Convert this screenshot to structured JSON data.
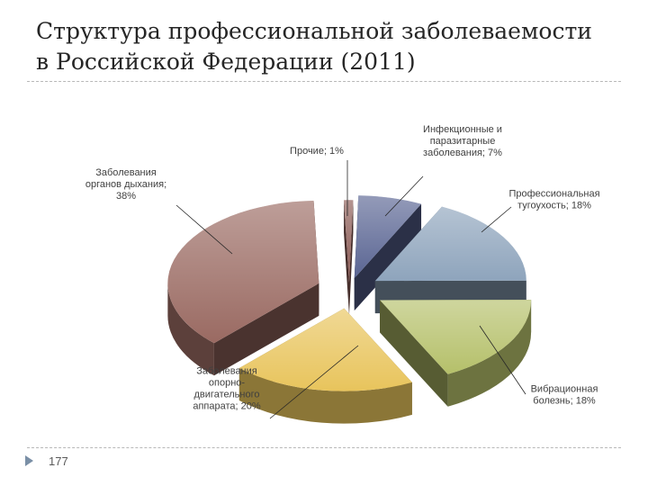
{
  "slide": {
    "title": "Структура профессиональной заболеваемости\nв Российской Федерации (2011)",
    "page_number": "177"
  },
  "chart_data": {
    "type": "pie",
    "title": "",
    "style": "3d-exploded",
    "legend": "none",
    "slices": [
      {
        "lines": [
          "Прочие; 1%"
        ],
        "value": 1,
        "color": "#8b5a54"
      },
      {
        "lines": [
          "Инфекционные и",
          "паразитарные",
          "заболевания; 7%"
        ],
        "value": 7,
        "color": "#5a6593"
      },
      {
        "lines": [
          "Профессиональная",
          "тугоухость; 18%"
        ],
        "value": 18,
        "color": "#8ea4bc"
      },
      {
        "lines": [
          "Вибрационная",
          "болезнь; 18%"
        ],
        "value": 18,
        "color": "#b5c06a"
      },
      {
        "lines": [
          "Заболевания",
          "опорно-",
          "двигательного",
          "аппарата; 20%"
        ],
        "value": 20,
        "color": "#e8c45c"
      },
      {
        "lines": [
          "Заболевания",
          "органов дыхания;",
          "38%"
        ],
        "value": 38,
        "color": "#9a6a62"
      }
    ]
  }
}
